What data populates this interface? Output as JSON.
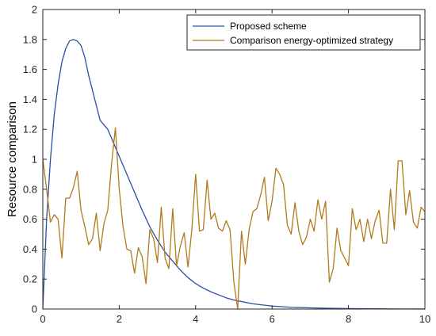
{
  "chart_data": {
    "type": "line",
    "xlabel": "",
    "ylabel": "Resource comparison",
    "xlim": [
      0,
      10
    ],
    "ylim": [
      0,
      2
    ],
    "xticks": [
      "0",
      "2",
      "4",
      "6",
      "8",
      "10"
    ],
    "yticks": [
      "0",
      "0.2",
      "0.4",
      "0.6",
      "0.8",
      "1",
      "1.2",
      "1.4",
      "1.6",
      "1.8",
      "2"
    ],
    "grid": false,
    "legend_position": "top-right",
    "series": [
      {
        "name": "Proposed scheme",
        "color": "#2a4fa0",
        "x": [
          0,
          0.1,
          0.2,
          0.3,
          0.4,
          0.5,
          0.6,
          0.7,
          0.8,
          0.9,
          1.0,
          1.1,
          1.2,
          1.3,
          1.4,
          1.5,
          1.6,
          1.7,
          1.8,
          1.9,
          2.0,
          2.2,
          2.4,
          2.6,
          2.8,
          3.0,
          3.2,
          3.4,
          3.6,
          3.8,
          4.0,
          4.2,
          4.4,
          4.6,
          4.8,
          5.0,
          5.5,
          6.0,
          6.5,
          7.0,
          7.5,
          8.0,
          8.5,
          9.0,
          9.5,
          10.0
        ],
        "y": [
          0,
          0.6,
          1.0,
          1.3,
          1.5,
          1.65,
          1.74,
          1.79,
          1.8,
          1.79,
          1.76,
          1.68,
          1.56,
          1.46,
          1.36,
          1.26,
          1.23,
          1.2,
          1.14,
          1.08,
          1.02,
          0.9,
          0.78,
          0.66,
          0.55,
          0.46,
          0.38,
          0.32,
          0.26,
          0.21,
          0.17,
          0.14,
          0.115,
          0.095,
          0.075,
          0.06,
          0.035,
          0.02,
          0.012,
          0.008,
          0.005,
          0.003,
          0.002,
          0.001,
          0.0005,
          0.0003
        ]
      },
      {
        "name": "Comparison energy-optimized strategy",
        "color": "#b07a1c",
        "x": [
          0,
          0.1,
          0.2,
          0.3,
          0.4,
          0.5,
          0.6,
          0.7,
          0.8,
          0.9,
          1.0,
          1.1,
          1.2,
          1.3,
          1.4,
          1.5,
          1.6,
          1.7,
          1.8,
          1.9,
          2.0,
          2.1,
          2.2,
          2.3,
          2.4,
          2.5,
          2.6,
          2.7,
          2.8,
          2.9,
          3.0,
          3.1,
          3.2,
          3.3,
          3.4,
          3.5,
          3.6,
          3.7,
          3.8,
          3.9,
          4.0,
          4.1,
          4.2,
          4.3,
          4.4,
          4.5,
          4.6,
          4.7,
          4.8,
          4.9,
          5.0,
          5.1,
          5.2,
          5.3,
          5.4,
          5.5,
          5.6,
          5.7,
          5.8,
          5.9,
          6.0,
          6.1,
          6.2,
          6.3,
          6.4,
          6.5,
          6.6,
          6.7,
          6.8,
          6.9,
          7.0,
          7.1,
          7.2,
          7.3,
          7.4,
          7.5,
          7.6,
          7.7,
          7.8,
          7.9,
          8.0,
          8.1,
          8.2,
          8.3,
          8.4,
          8.5,
          8.6,
          8.7,
          8.8,
          8.9,
          9.0,
          9.1,
          9.2,
          9.3,
          9.4,
          9.5,
          9.6,
          9.7,
          9.8,
          9.9,
          10.0
        ],
        "y": [
          1.0,
          0.8,
          0.58,
          0.63,
          0.6,
          0.34,
          0.74,
          0.74,
          0.81,
          0.92,
          0.66,
          0.55,
          0.43,
          0.47,
          0.64,
          0.39,
          0.57,
          0.66,
          0.97,
          1.21,
          0.8,
          0.55,
          0.4,
          0.39,
          0.24,
          0.41,
          0.35,
          0.17,
          0.53,
          0.47,
          0.31,
          0.68,
          0.34,
          0.27,
          0.67,
          0.29,
          0.42,
          0.51,
          0.28,
          0.53,
          0.9,
          0.52,
          0.53,
          0.86,
          0.6,
          0.64,
          0.54,
          0.52,
          0.59,
          0.53,
          0.18,
          0.0,
          0.52,
          0.3,
          0.53,
          0.65,
          0.67,
          0.76,
          0.88,
          0.59,
          0.72,
          0.94,
          0.9,
          0.83,
          0.56,
          0.5,
          0.71,
          0.52,
          0.43,
          0.48,
          0.6,
          0.52,
          0.73,
          0.6,
          0.72,
          0.18,
          0.27,
          0.54,
          0.39,
          0.34,
          0.29,
          0.67,
          0.53,
          0.6,
          0.45,
          0.6,
          0.47,
          0.59,
          0.66,
          0.44,
          0.44,
          0.8,
          0.53,
          0.99,
          0.99,
          0.63,
          0.79,
          0.58,
          0.54,
          0.68,
          0.65
        ]
      }
    ]
  }
}
